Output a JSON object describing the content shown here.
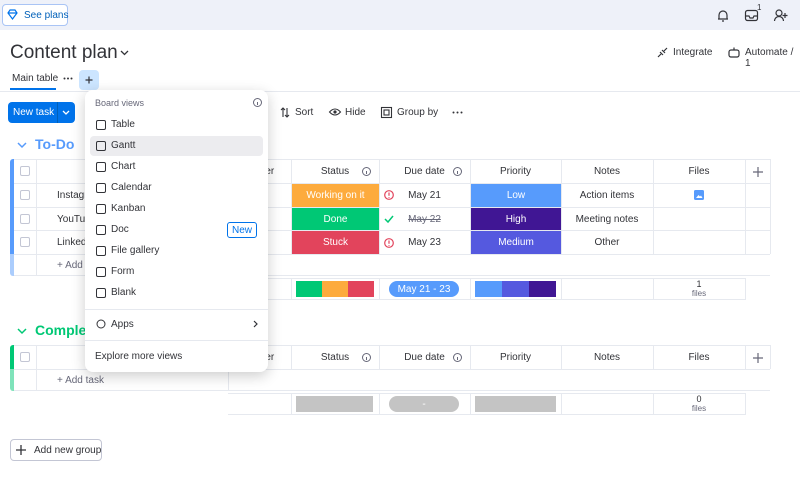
{
  "top_bar": {
    "see_plans": "See plans",
    "inbox_badge": "1"
  },
  "header": {
    "title": "Content plan",
    "integrate": "Integrate",
    "automate": "Automate / 1"
  },
  "tabs": {
    "main_table": "Main table"
  },
  "toolbar": {
    "new_task": "New task",
    "sort": "Sort",
    "hide": "Hide",
    "group_by": "Group by"
  },
  "dropdown": {
    "heading": "Board views",
    "items": [
      {
        "label": "Table"
      },
      {
        "label": "Gantt"
      },
      {
        "label": "Chart"
      },
      {
        "label": "Calendar"
      },
      {
        "label": "Kanban"
      },
      {
        "label": "Doc",
        "badge": "New"
      },
      {
        "label": "File gallery"
      },
      {
        "label": "Form"
      },
      {
        "label": "Blank"
      }
    ],
    "apps": "Apps",
    "explore": "Explore more views"
  },
  "groups": [
    {
      "title": "To-Do",
      "columns": [
        "Owner",
        "Status",
        "Due date",
        "Priority",
        "Notes",
        "Files"
      ],
      "rows": [
        {
          "item": "Instagram",
          "status": "Working on it",
          "due_date": "May 21",
          "priority": "Low",
          "notes": "Action items"
        },
        {
          "item": "YouTube",
          "status": "Done",
          "due_date": "May 22",
          "priority": "High",
          "notes": "Meeting notes"
        },
        {
          "item": "LinkedIn",
          "status": "Stuck",
          "due_date": "May 23",
          "priority": "Medium",
          "notes": "Other"
        }
      ],
      "add_task": "+ Add task",
      "summary": {
        "due_date": "May 21 - 23",
        "files_count": "1",
        "files_label": "files"
      }
    },
    {
      "title": "Completed",
      "columns": [
        "Owner",
        "Status",
        "Due date",
        "Priority",
        "Notes",
        "Files"
      ],
      "rows": [],
      "add_task": "+ Add task",
      "summary": {
        "due_date": "-",
        "files_count": "0",
        "files_label": "files"
      }
    }
  ],
  "add_group": "Add new group"
}
